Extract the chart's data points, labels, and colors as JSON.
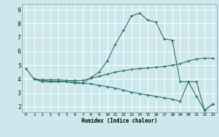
{
  "xlabel": "Humidex (Indice chaleur)",
  "bg_color": "#cde8ec",
  "grid_color": "#ffffff",
  "line_color": "#2e6e68",
  "xlim": [
    -0.5,
    23.5
  ],
  "ylim": [
    1.6,
    9.4
  ],
  "xticks": [
    0,
    1,
    2,
    3,
    4,
    5,
    6,
    7,
    8,
    9,
    10,
    11,
    12,
    13,
    14,
    15,
    16,
    17,
    18,
    19,
    20,
    21,
    22,
    23
  ],
  "yticks": [
    2,
    3,
    4,
    5,
    6,
    7,
    8,
    9
  ],
  "series1_x": [
    0,
    1,
    2,
    3,
    4,
    5,
    6,
    7,
    8,
    9,
    10,
    11,
    12,
    13,
    14,
    15,
    16,
    17,
    18,
    19,
    20,
    21,
    22,
    23
  ],
  "series1_y": [
    4.75,
    4.0,
    3.8,
    3.8,
    3.8,
    3.8,
    3.7,
    3.7,
    4.1,
    4.5,
    5.3,
    6.5,
    7.5,
    8.55,
    8.75,
    8.25,
    8.1,
    6.9,
    6.8,
    3.8,
    3.8,
    2.75,
    1.75,
    2.2
  ],
  "series2_x": [
    1,
    2,
    3,
    4,
    5,
    6,
    7,
    8,
    9,
    10,
    11,
    12,
    13,
    14,
    15,
    16,
    17,
    18,
    19,
    20,
    21,
    22,
    23
  ],
  "series2_y": [
    4.0,
    3.95,
    3.95,
    3.95,
    3.9,
    3.9,
    3.9,
    4.05,
    4.2,
    4.35,
    4.5,
    4.6,
    4.7,
    4.75,
    4.8,
    4.85,
    4.9,
    5.0,
    5.1,
    5.3,
    5.45,
    5.5,
    5.5
  ],
  "series3_x": [
    1,
    2,
    3,
    4,
    5,
    6,
    7,
    8,
    9,
    10,
    11,
    12,
    13,
    14,
    15,
    16,
    17,
    18,
    19,
    20,
    21,
    22,
    23
  ],
  "series3_y": [
    4.0,
    3.9,
    3.85,
    3.85,
    3.8,
    3.8,
    3.7,
    3.65,
    3.55,
    3.45,
    3.35,
    3.2,
    3.05,
    2.95,
    2.85,
    2.75,
    2.65,
    2.55,
    2.4,
    3.8,
    3.8,
    1.75,
    2.2
  ]
}
